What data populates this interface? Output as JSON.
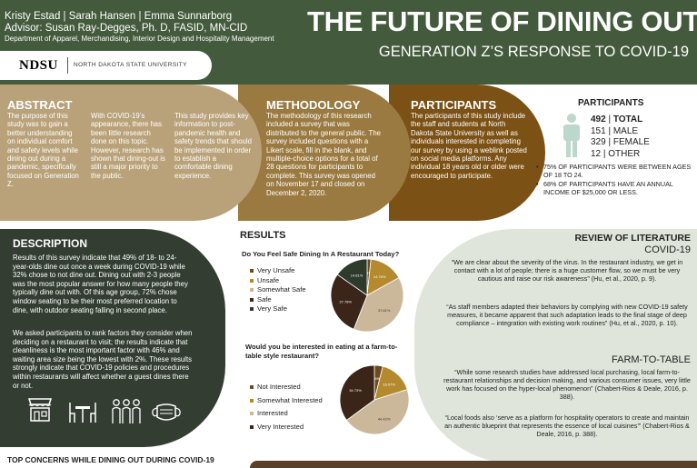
{
  "header": {
    "authors": "Kristy Estad | Sarah Hansen | Emma Sunnarborg",
    "advisor": "Advisor: Susan Ray-Degges, Ph. D, FASID, MN-CID",
    "department": "Department of Apparel, Merchandising, Interior Design and Hospitality Management",
    "title": "THE FUTURE OF DINING OUT",
    "subtitle": "GENERATION Z’S RESPONSE TO COVID-19",
    "logo_text": "NDSU",
    "logo_university": "NORTH DAKOTA STATE UNIVERSITY"
  },
  "abstract": {
    "heading": "ABSTRACT",
    "col1": "The purpose of this study was to gain a better understanding on individual comfort and safety levels while dining out during a pandemic, specifically focused on Generation Z.",
    "col2": "With COVID-19’s appearance, there has been little research done on this topic. However, research has shown that dining-out is still a major priority to the public.",
    "col3": "This study provides key information to post-pandemic health and safety trends that should be implemented in order to establish a comfortable dining experience."
  },
  "methodology": {
    "heading": "METHODOLOGY",
    "text": "The methodology of this research included a survey that was distributed to the general public. The survey included questions with a Likert scale, fill in the blank, and multiple-choice options for a total of 28 questions for participants to complete. This survey was opened on November 17 and closed on December 2, 2020."
  },
  "participants": {
    "heading": "PARTICIPANTS",
    "text": "The participants of this study include the staff and students at North Dakota State University as well as individuals interested in completing our survey by using a weblink posted on social media platforms. Any individual 18 years old or older were encouraged to participate.",
    "stats_heading": "PARTICIPANTS",
    "stats": [
      {
        "value": "492",
        "label": "TOTAL"
      },
      {
        "value": "151",
        "label": "MALE"
      },
      {
        "value": "329",
        "label": "FEMALE"
      },
      {
        "value": "12",
        "label": "OTHER"
      }
    ],
    "bullets": [
      "75% OF PARTICIPANTS WERE BETWEEN AGES OF 18 TO 24.",
      "68% OF PARTICIPANTS HAVE AN ANNUAL INCOME OF $25,000 OR LESS."
    ]
  },
  "description": {
    "heading": "DESCRIPTION",
    "p1": "Results of this survey indicate that 49% of 18- to 24-year-olds dine out once a week during COVID-19 while 32% chose to not dine out. Dining out with 2-3 people was the most popular answer for how many people they typically dine out with. Of this age group, 72% chose window seating to be their most preferred location to dine, with outdoor seating falling in second place.",
    "p2": "We asked participants to rank factors they consider when deciding on a restaurant to visit; the results indicate that cleanliness is the most important factor with 46% and waiting area size being the lowest with 2%. These results strongly indicate that COVID-19 policies and procedures within restaurants will affect whether a guest dines there or not."
  },
  "results": {
    "heading": "RESULTS",
    "top_concerns": "TOP CONCERNS WHILE DINING OUT DURING COVID-19"
  },
  "chart_data": [
    {
      "type": "pie",
      "title": "Do You Feel Safe Dining In A Restaurant Today?",
      "categories": [
        "Very Unsafe",
        "Unsafe",
        "Somewhat Safe",
        "Safe",
        "Very Safe"
      ],
      "values": [
        1.63,
        14.75,
        37.81,
        27.78,
        14.81
      ],
      "value_labels": [
        "1.63%",
        "14.75%",
        "37.81%",
        "27.78%",
        "14.81%"
      ],
      "colors": [
        "#6b4a1e",
        "#b58a2e",
        "#cbb89a",
        "#3b2418",
        "#2e3a2b"
      ]
    },
    {
      "type": "pie",
      "title": "Would you be interested in eating at a farm-to-table style restaurant?",
      "categories": [
        "Not Interested",
        "Somewhat Interested",
        "Interested",
        "Very Interested"
      ],
      "values": [
        3.89,
        16.07,
        44.42,
        34.73
      ],
      "value_labels": [
        "3.89%",
        "16.07%",
        "44.42%",
        "34.73%"
      ],
      "colors": [
        "#6b4a1e",
        "#b58a2e",
        "#cbb89a",
        "#3b2418"
      ]
    }
  ],
  "literature": {
    "heading": "REVIEW OF LITERATURE",
    "covid_heading": "COVID-19",
    "q1": "“We are clear about the severity of the virus. In the restaurant industry, we get in contact with a lot of people; there is a huge customer flow, so we must be very cautious and raise our risk awareness” (Hu, et al., 2020, p. 9).",
    "q2": "“As staff members adapted their behaviors by complying with new COVID-19 safety measures, it became apparent that such adaptation leads to the final stage of deep compliance – integration with existing work routines” (Hu, et al., 2020, p. 10).",
    "farm_heading": "FARM-TO-TABLE",
    "q3": "“While some research studies have addressed local purchasing, local farm-to-restaurant relationships and decision making, and various consumer issues, very little work has focused on the hyper-local phenomenon” (Chabert-Rios & Deale, 2016, p. 388).",
    "q4": "“Local foods also ‘serve as a platform for hospitality operators to create and maintain an authentic blueprint that represents the essence of local cuisines’” (Chabert-Rios & Deale, 2016, p. 388)."
  },
  "icons": [
    "restaurant-icon",
    "table-icon",
    "people-icon",
    "mask-icon",
    "person-icon"
  ]
}
